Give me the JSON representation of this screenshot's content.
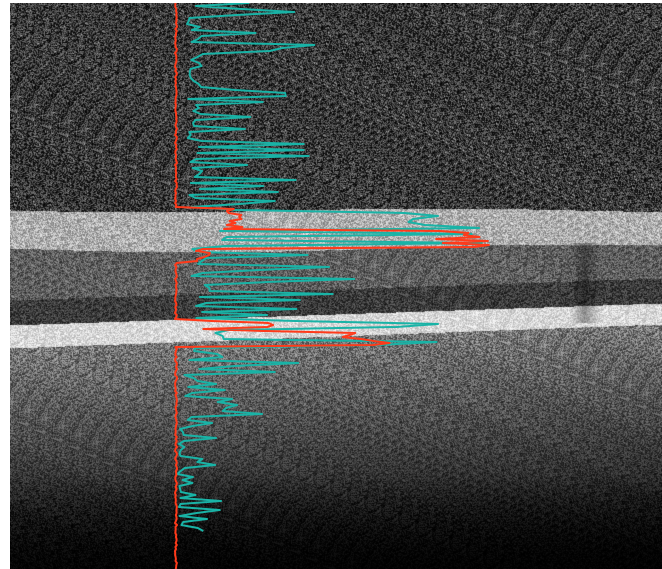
{
  "image": {
    "kind": "oct-retinal-scan",
    "colors": {
      "background": "#000000",
      "frame": "#ffffff",
      "profile_primary": "#ff3a1a",
      "profile_secondary": "#19b3a6"
    }
  },
  "overlays": [
    {
      "name": "red-intensity-profile",
      "color": "#ff3a1a"
    },
    {
      "name": "teal-intensity-profile",
      "color": "#19b3a6"
    }
  ]
}
